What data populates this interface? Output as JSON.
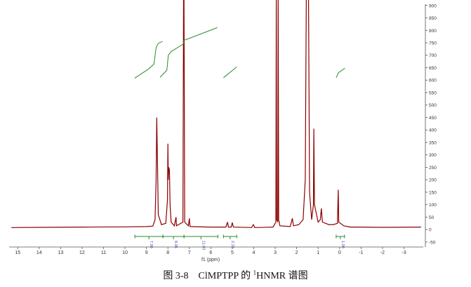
{
  "chart_data": {
    "type": "line",
    "x_label": "f1 (ppm)",
    "color": "#8b0000",
    "x": [
      15.3,
      14,
      12,
      10,
      9,
      8.7,
      8.6,
      8.55,
      8.52,
      8.49,
      8.45,
      8.3,
      8.1,
      8.02,
      8.0,
      7.98,
      7.96,
      7.93,
      7.9,
      7.85,
      7.7,
      7.62,
      7.6,
      7.3,
      7.27,
      7.25,
      7.22,
      7.05,
      7.0,
      6.97,
      6,
      5.3,
      5.22,
      5.18,
      5.05,
      5.0,
      4.95,
      4.1,
      4.02,
      3.95,
      3.1,
      2.97,
      2.95,
      2.93,
      2.88,
      2.86,
      2.84,
      2.78,
      2.3,
      2.2,
      2.15,
      1.9,
      1.7,
      1.6,
      1.55,
      1.45,
      1.4,
      1.3,
      1.22,
      1.2,
      1.17,
      1.0,
      0.9,
      0.85,
      0.8,
      0.5,
      0.3,
      0.1,
      0.06,
      0.04,
      -0.2,
      -0.5,
      -1,
      -2,
      -3.8
    ],
    "values": [
      8,
      9,
      10,
      11,
      12,
      14,
      40,
      200,
      450,
      300,
      60,
      20,
      25,
      120,
      345,
      200,
      250,
      240,
      100,
      30,
      15,
      50,
      15,
      30,
      950,
      950,
      30,
      15,
      45,
      12,
      10,
      10,
      30,
      10,
      10,
      28,
      10,
      8,
      20,
      8,
      10,
      30,
      950,
      40,
      30,
      950,
      40,
      15,
      12,
      45,
      15,
      20,
      40,
      200,
      950,
      950,
      150,
      40,
      100,
      405,
      100,
      30,
      40,
      85,
      30,
      20,
      20,
      25,
      160,
      30,
      15,
      10,
      10,
      9,
      10
    ],
    "integral_color": "#2e8b2e",
    "integral_curves": [
      {
        "x": [
          9.55,
          8.9,
          8.65,
          8.55,
          8.45,
          8.25
        ],
        "values": [
          608,
          645,
          665,
          730,
          748,
          756
        ]
      },
      {
        "x": [
          8.36,
          8.05,
          7.98,
          7.85,
          7.28,
          7.25,
          5.7
        ],
        "values": [
          612,
          640,
          700,
          715,
          745,
          760,
          811
        ]
      },
      {
        "x": [
          5.41,
          4.79
        ],
        "values": [
          610,
          653
        ]
      },
      {
        "x": [
          0.16,
          0.05,
          -0.25
        ],
        "values": [
          610,
          630,
          648
        ]
      }
    ],
    "integrals": [
      {
        "range": [
          9.54,
          8.23
        ],
        "label": "7.90"
      },
      {
        "range": [
          8.23,
          7.25
        ],
        "label": "8.06"
      },
      {
        "range": [
          7.25,
          5.67
        ],
        "label": "11.03"
      },
      {
        "range": [
          5.41,
          4.79
        ],
        "label": "2.15"
      },
      {
        "range": [
          0.16,
          -0.23
        ],
        "label": "1.00"
      }
    ],
    "xlim": [
      15.4,
      -3.9
    ],
    "xticks": [
      15,
      14,
      13,
      12,
      11,
      10,
      9,
      8,
      7,
      6,
      5,
      4,
      3,
      2,
      1,
      0,
      -1,
      -2,
      -3
    ],
    "ylim": [
      -70,
      905
    ],
    "yticks": [
      900,
      850,
      800,
      750,
      700,
      650,
      600,
      550,
      500,
      450,
      400,
      350,
      300,
      250,
      200,
      150,
      100,
      50,
      0,
      -50
    ]
  },
  "caption": {
    "figure": "图 3-8",
    "compound": "ClMPTPP 的 ",
    "superscript": "1",
    "rest": "HNMR 谱图"
  }
}
